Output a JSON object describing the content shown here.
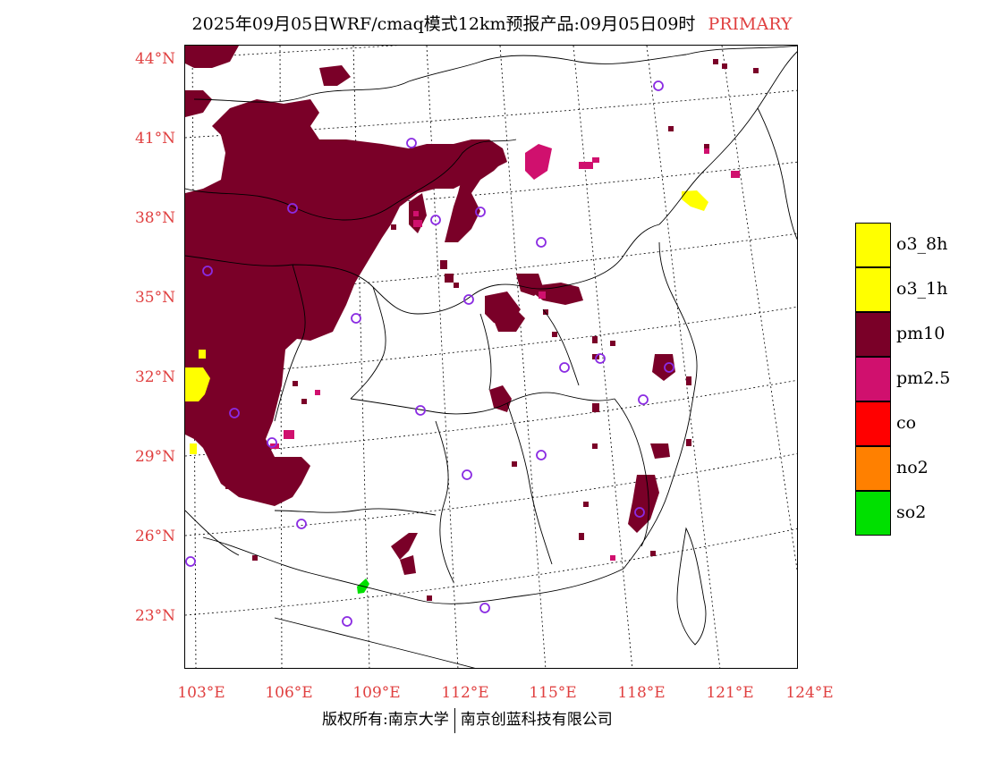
{
  "title": {
    "main": "2025年09月05日WRF/cmaq模式12km预报产品:09月05日09时",
    "tag": "PRIMARY"
  },
  "lat_labels": [
    "44°N",
    "41°N",
    "38°N",
    "35°N",
    "32°N",
    "29°N",
    "26°N",
    "23°N"
  ],
  "lon_labels": [
    "103°E",
    "106°E",
    "109°E",
    "112°E",
    "115°E",
    "118°E",
    "121°E",
    "124°E"
  ],
  "legend": [
    {
      "label": "o3_8h",
      "color": "#ffff00"
    },
    {
      "label": "o3_1h",
      "color": "#ffff00"
    },
    {
      "label": "pm10",
      "color": "#7a0028"
    },
    {
      "label": "pm2.5",
      "color": "#d0106e"
    },
    {
      "label": "co",
      "color": "#ff0000"
    },
    {
      "label": "no2",
      "color": "#ff8000"
    },
    {
      "label": "so2",
      "color": "#00e000"
    }
  ],
  "colors": {
    "pm10": "#7a0028",
    "pm25": "#d0106e",
    "o3": "#ffff00",
    "so2": "#00e000",
    "station_marker": "#8a2be2",
    "axis_label": "#e04040"
  },
  "footer": {
    "left": "版权所有:南京大学",
    "right": "南京创蓝科技有限公司"
  }
}
